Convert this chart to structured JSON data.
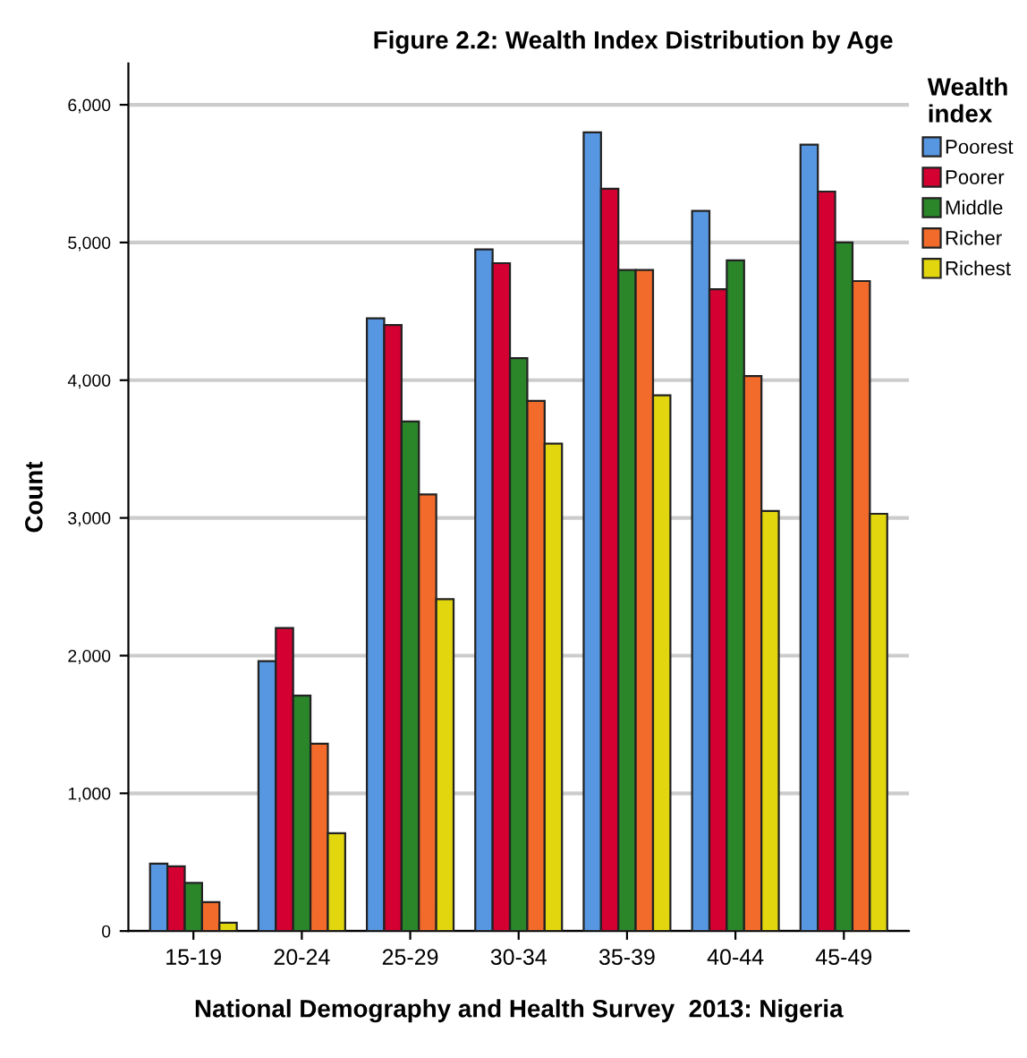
{
  "chart_data": {
    "type": "bar",
    "title": "Figure 2.2: Wealth Index Distribution by Age",
    "xlabel": "National Demography and Health Survey  2013: Nigeria",
    "ylabel": "Count",
    "legend_title": "Wealth\nindex",
    "categories": [
      "15-19",
      "20-24",
      "25-29",
      "30-34",
      "35-39",
      "40-44",
      "45-49"
    ],
    "series": [
      {
        "name": "Poorest",
        "color": "#5797e2",
        "values": [
          490,
          1960,
          4450,
          4950,
          5800,
          5230,
          5710
        ]
      },
      {
        "name": "Poorer",
        "color": "#d40032",
        "values": [
          470,
          2200,
          4400,
          4850,
          5390,
          4660,
          5370
        ]
      },
      {
        "name": "Middle",
        "color": "#2a8629",
        "values": [
          350,
          1710,
          3700,
          4160,
          4800,
          4870,
          5000
        ]
      },
      {
        "name": "Richer",
        "color": "#f26b2a",
        "values": [
          210,
          1360,
          3170,
          3850,
          4800,
          4030,
          4720
        ]
      },
      {
        "name": "Richest",
        "color": "#e2d60e",
        "values": [
          60,
          710,
          2410,
          3540,
          3890,
          3050,
          3030
        ]
      }
    ],
    "ylim": [
      0,
      6300
    ],
    "yticks": [
      {
        "value": 0,
        "label": "0"
      },
      {
        "value": 1000,
        "label": "1,000"
      },
      {
        "value": 2000,
        "label": "2,000"
      },
      {
        "value": 3000,
        "label": "3,000"
      },
      {
        "value": 4000,
        "label": "4,000"
      },
      {
        "value": 5000,
        "label": "5,000"
      },
      {
        "value": 6000,
        "label": "6,000"
      }
    ],
    "grid": "y",
    "legend": "right"
  }
}
